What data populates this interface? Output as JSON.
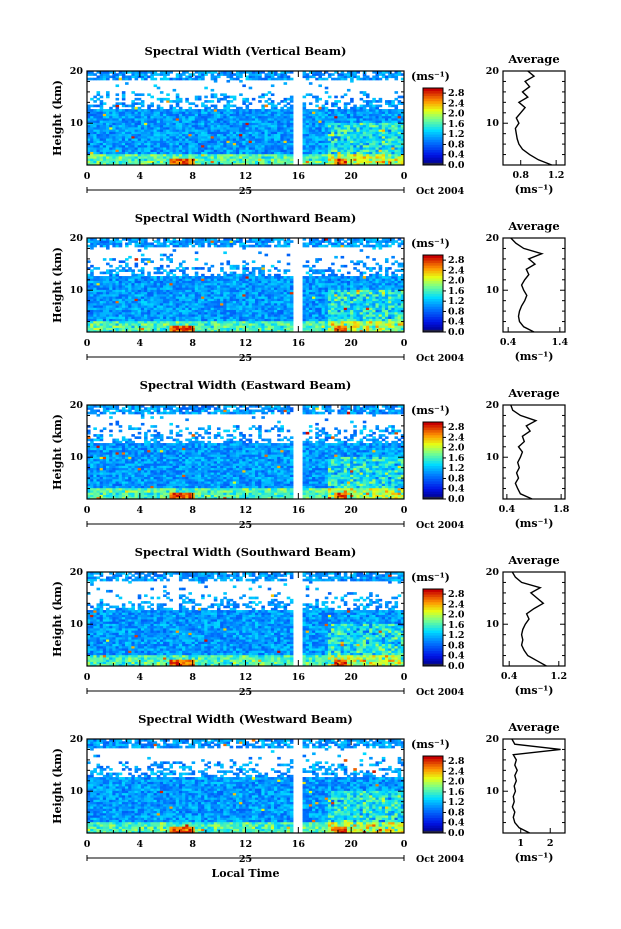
{
  "chart_data": [
    {
      "type": "heatmap",
      "title": "Spectral Width (Vertical Beam)",
      "ylabel": "Height (km)",
      "ylim": [
        2,
        20
      ],
      "yticks": [
        "10",
        "20"
      ],
      "xlim": [
        0,
        24
      ],
      "xticks": [
        "0",
        "4",
        "8",
        "12",
        "16",
        "20",
        "0"
      ],
      "date_label": "25",
      "date_suffix": "Oct 2004",
      "colorbar": {
        "unit": "(ms⁻¹)",
        "ticks": [
          "2.8",
          "2.4",
          "2.0",
          "1.6",
          "1.2",
          "0.8",
          "0.4",
          "0.0"
        ],
        "range": [
          0,
          3.0
        ]
      },
      "profile": {
        "title": "Average",
        "xlabel": "(ms⁻¹)",
        "xticks": [
          "0.8",
          "1.2"
        ],
        "xlim": [
          0.6,
          1.3
        ],
        "heights": [
          2,
          3,
          4,
          5,
          6,
          7,
          8,
          9,
          10,
          11,
          12,
          13,
          14,
          15,
          16,
          17,
          18,
          19,
          20
        ],
        "values": [
          1.15,
          1.0,
          0.9,
          0.82,
          0.78,
          0.76,
          0.75,
          0.74,
          0.78,
          0.75,
          0.8,
          0.85,
          0.78,
          0.88,
          0.82,
          0.9,
          0.85,
          0.95,
          0.88
        ]
      }
    },
    {
      "type": "heatmap",
      "title": "Spectral Width (Northward Beam)",
      "ylabel": "Height (km)",
      "ylim": [
        2,
        20
      ],
      "yticks": [
        "10",
        "20"
      ],
      "xlim": [
        0,
        24
      ],
      "xticks": [
        "0",
        "4",
        "8",
        "12",
        "16",
        "20",
        "0"
      ],
      "date_label": "25",
      "date_suffix": "Oct 2004",
      "colorbar": {
        "unit": "(ms⁻¹)",
        "ticks": [
          "2.8",
          "2.4",
          "2.0",
          "1.6",
          "1.2",
          "0.8",
          "0.4",
          "0.0"
        ],
        "range": [
          0,
          3.0
        ]
      },
      "profile": {
        "title": "Average",
        "xlabel": "(ms⁻¹)",
        "xticks": [
          "0.4",
          "1.4"
        ],
        "xlim": [
          0.3,
          1.5
        ],
        "heights": [
          2,
          3,
          4,
          5,
          6,
          7,
          8,
          9,
          10,
          11,
          12,
          13,
          14,
          15,
          16,
          17,
          18,
          19,
          20
        ],
        "values": [
          0.9,
          0.7,
          0.62,
          0.6,
          0.62,
          0.66,
          0.72,
          0.76,
          0.7,
          0.66,
          0.72,
          0.8,
          0.75,
          0.92,
          0.8,
          1.05,
          0.7,
          0.55,
          0.45
        ]
      }
    },
    {
      "type": "heatmap",
      "title": "Spectral Width (Eastward Beam)",
      "ylabel": "Height (km)",
      "ylim": [
        2,
        20
      ],
      "yticks": [
        "10",
        "20"
      ],
      "xlim": [
        0,
        24
      ],
      "xticks": [
        "0",
        "4",
        "8",
        "12",
        "16",
        "20",
        "0"
      ],
      "date_label": "25",
      "date_suffix": "Oct 2004",
      "colorbar": {
        "unit": "(ms⁻¹)",
        "ticks": [
          "2.8",
          "2.4",
          "2.0",
          "1.6",
          "1.2",
          "0.8",
          "0.4",
          "0.0"
        ],
        "range": [
          0,
          3.0
        ]
      },
      "profile": {
        "title": "Average",
        "xlabel": "(ms⁻¹)",
        "xticks": [
          "0.4",
          "1.8"
        ],
        "xlim": [
          0.3,
          1.9
        ],
        "heights": [
          2,
          3,
          4,
          5,
          6,
          7,
          8,
          9,
          10,
          11,
          12,
          13,
          14,
          15,
          16,
          17,
          18,
          19,
          20
        ],
        "values": [
          1.05,
          0.75,
          0.68,
          0.62,
          0.7,
          0.65,
          0.72,
          0.68,
          0.75,
          0.8,
          0.7,
          0.85,
          0.8,
          1.0,
          0.9,
          1.15,
          0.75,
          0.55,
          0.5
        ]
      }
    },
    {
      "type": "heatmap",
      "title": "Spectral Width (Southward Beam)",
      "ylabel": "Height (km)",
      "ylim": [
        2,
        20
      ],
      "yticks": [
        "10",
        "20"
      ],
      "xlim": [
        0,
        24
      ],
      "xticks": [
        "0",
        "4",
        "8",
        "12",
        "16",
        "20",
        "0"
      ],
      "date_label": "25",
      "date_suffix": "Oct 2004",
      "colorbar": {
        "unit": "(ms⁻¹)",
        "ticks": [
          "2.8",
          "2.4",
          "2.0",
          "1.6",
          "1.2",
          "0.8",
          "0.4",
          "0.0"
        ],
        "range": [
          0,
          3.0
        ]
      },
      "profile": {
        "title": "Average",
        "xlabel": "(ms⁻¹)",
        "xticks": [
          "0.4",
          "1.2"
        ],
        "xlim": [
          0.3,
          1.3
        ],
        "heights": [
          2,
          3,
          4,
          5,
          6,
          7,
          8,
          9,
          10,
          11,
          12,
          13,
          14,
          15,
          16,
          17,
          18,
          19,
          20
        ],
        "values": [
          1.0,
          0.85,
          0.7,
          0.64,
          0.6,
          0.62,
          0.6,
          0.62,
          0.66,
          0.72,
          0.68,
          0.8,
          0.95,
          0.85,
          0.75,
          0.9,
          0.6,
          0.5,
          0.45
        ]
      }
    },
    {
      "type": "heatmap",
      "title": "Spectral Width (Westward Beam)",
      "ylabel": "Height (km)",
      "xlabel": "Local Time",
      "ylim": [
        2,
        20
      ],
      "yticks": [
        "10",
        "20"
      ],
      "xlim": [
        0,
        24
      ],
      "xticks": [
        "0",
        "4",
        "8",
        "12",
        "16",
        "20",
        "0"
      ],
      "date_label": "25",
      "date_suffix": "Oct 2004",
      "colorbar": {
        "unit": "(ms⁻¹)",
        "ticks": [
          "2.8",
          "2.4",
          "2.0",
          "1.6",
          "1.2",
          "0.8",
          "0.4",
          "0.0"
        ],
        "range": [
          0,
          3.0
        ]
      },
      "profile": {
        "title": "Average",
        "xlabel": "(ms⁻¹)",
        "xticks": [
          "1",
          "2"
        ],
        "xlim": [
          0.4,
          2.5
        ],
        "heights": [
          2,
          3,
          4,
          5,
          6,
          7,
          8,
          9,
          10,
          11,
          12,
          13,
          14,
          15,
          16,
          17,
          18,
          19,
          20
        ],
        "values": [
          1.3,
          0.95,
          0.8,
          0.75,
          0.8,
          0.72,
          0.78,
          0.75,
          0.82,
          0.78,
          0.85,
          0.8,
          0.88,
          0.8,
          0.85,
          0.75,
          2.35,
          0.8,
          0.7
        ]
      }
    }
  ]
}
